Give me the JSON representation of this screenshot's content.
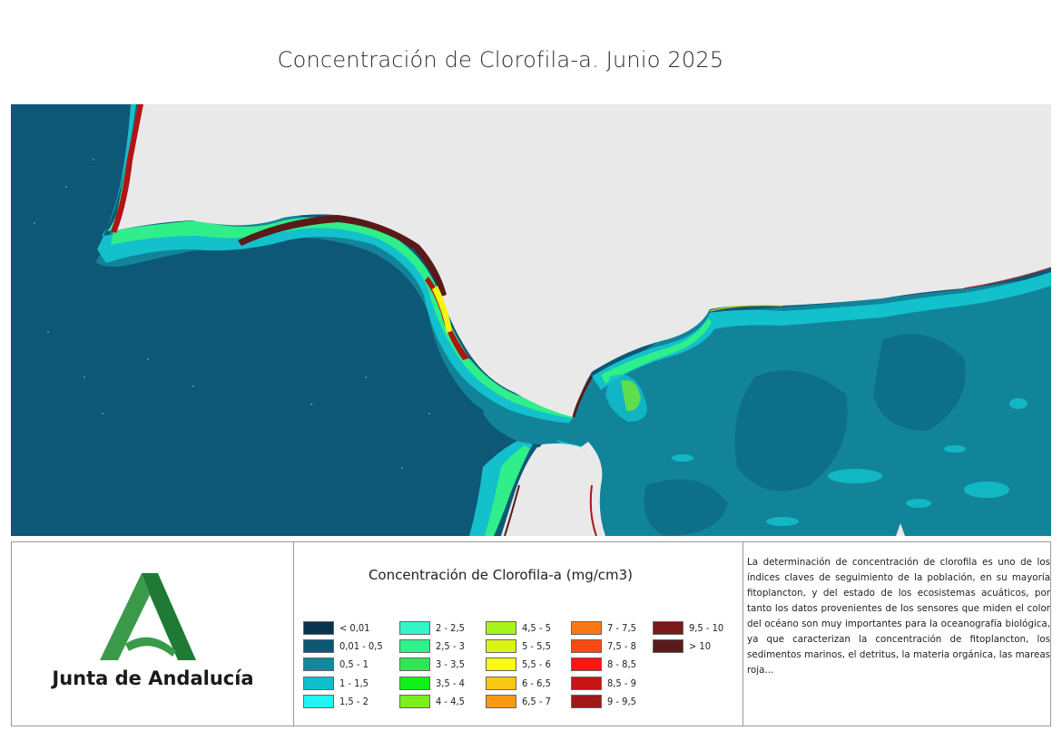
{
  "title": "Concentración de Clorofila-a. Junio 2025",
  "legend": {
    "title": "Concentración de Clorofila-a (mg/cm3)",
    "columns": [
      [
        {
          "label": "< 0,01",
          "color": "#0a3350"
        },
        {
          "label": "0,01 - 0,5",
          "color": "#0d5774"
        },
        {
          "label": "0,5 - 1",
          "color": "#13879c"
        },
        {
          "label": "1 - 1,5",
          "color": "#10bfcc"
        },
        {
          "label": "1,5 - 2",
          "color": "#20f5f5"
        }
      ],
      [
        {
          "label": "2 - 2,5",
          "color": "#33f5c8"
        },
        {
          "label": "2,5 - 3",
          "color": "#33f08c"
        },
        {
          "label": "3 - 3,5",
          "color": "#2de856"
        },
        {
          "label": "3,5 - 4",
          "color": "#12f01a"
        },
        {
          "label": "4 - 4,5",
          "color": "#7cf01c"
        }
      ],
      [
        {
          "label": "4,5 - 5",
          "color": "#a6f51a"
        },
        {
          "label": "5 - 5,5",
          "color": "#d8f514"
        },
        {
          "label": "5,5 - 6",
          "color": "#fafa14"
        },
        {
          "label": "6 - 6,5",
          "color": "#fac814"
        },
        {
          "label": "6,5 - 7",
          "color": "#fa9a14"
        }
      ],
      [
        {
          "label": "7 - 7,5",
          "color": "#fa7814"
        },
        {
          "label": "7,5 - 8",
          "color": "#fa4a14"
        },
        {
          "label": "8 - 8,5",
          "color": "#fa1414"
        },
        {
          "label": "8,5 - 9",
          "color": "#c81414"
        },
        {
          "label": "9 - 9,5",
          "color": "#a01818"
        }
      ],
      [
        {
          "label": "9,5 - 10",
          "color": "#7a1a1a"
        },
        {
          "label": "> 10",
          "color": "#5a1a1a"
        }
      ]
    ]
  },
  "logo": {
    "text": "Junta de Andalucía",
    "color": "#2e8b3e"
  },
  "description": "La determinación de concentración de clorofila es uno de los índices claves de seguimiento de la población, en su mayoría fitoplancton, y del estado de los ecosistemas acuáticos, por tanto los datos provenientes de los sensores que miden el color del océano son muy importantes para la oceanografía biológica, ya que caracterizan la concentración de fitoplancton, los sedimentos marinos, el detritus, la materia orgánica, las mareas roja...",
  "map_colors": {
    "land": "#e9e9e9",
    "ocean_open": "#0c5876",
    "ocean_med": "#12849a",
    "coastal_cyan": "#12c1cc",
    "coastal_green": "#30ee8a",
    "coastal_yellow": "#f6f614",
    "coastal_red": "#b01414",
    "coastal_dark": "#5a1a1a"
  }
}
